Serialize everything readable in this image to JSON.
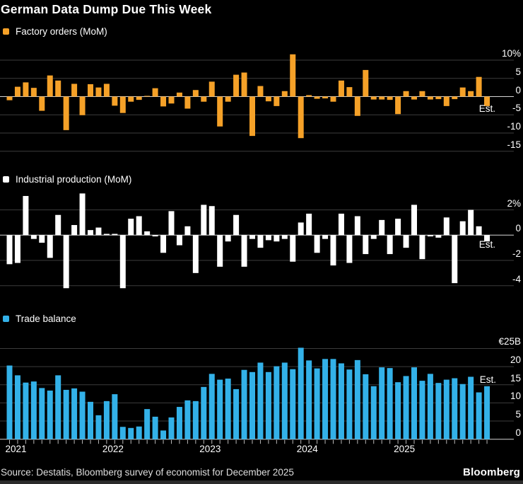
{
  "title": "German Data Dump Due This Week",
  "source": "Source: Destatis, Bloomberg survey of economist for December 2025",
  "brand": "Bloomberg",
  "colors": {
    "background": "#000000",
    "factory_orders": "#F5A128",
    "industrial_production": "#FFFFFF",
    "trade_balance": "#33B1E8",
    "gridline": "#3C3C3C",
    "zero_line": "#D6D6D6",
    "axis_tick": "#B8B8B8",
    "axis_text": "#FFFFFF",
    "source_text": "#DEDEDE"
  },
  "x_axis": {
    "years": [
      "2021",
      "2022",
      "2023",
      "2024",
      "2025"
    ],
    "months_per_year": 12,
    "start": "2021-01",
    "end": "2025-12",
    "last_point_note": "Est."
  },
  "chart_data": [
    {
      "type": "bar",
      "title": "Factory orders (MoM)",
      "unit": "%",
      "color": "#F5A128",
      "est_label": "Est.",
      "est_month": "2025-12",
      "ylim": [
        -15,
        10
      ],
      "grid": true,
      "legend_position": "top-left",
      "yticks": [
        "10%",
        "5",
        "0",
        "-5",
        "-10",
        "-15"
      ],
      "ytick_values": [
        10,
        5,
        0,
        -5,
        -10,
        -15
      ],
      "x_start": "2021-01",
      "values": [
        -1.0,
        2.7,
        3.9,
        2.4,
        -3.9,
        5.8,
        4.4,
        -9.2,
        3.5,
        -5.1,
        3.4,
        2.5,
        3.5,
        -2.5,
        -4.5,
        -1.4,
        -0.9,
        0.2,
        2.3,
        -2.7,
        -1.9,
        1.1,
        -3.3,
        1.8,
        -1.4,
        4.1,
        -8.2,
        -1.4,
        6.0,
        6.6,
        -10.8,
        2.9,
        -1.3,
        -2.6,
        1.5,
        11.6,
        -11.4,
        0.4,
        -0.6,
        -0.5,
        -1.4,
        4.4,
        2.6,
        -5.3,
        7.3,
        -0.8,
        -0.8,
        -0.9,
        -4.8,
        1.5,
        -0.8,
        1.5,
        -0.8,
        -0.7,
        -2.6,
        -0.7,
        2.5,
        1.5,
        5.4,
        -2.6
      ]
    },
    {
      "type": "bar",
      "title": "Industrial production (MoM)",
      "unit": "%",
      "color": "#FFFFFF",
      "est_label": "Est.",
      "est_month": "2025-12",
      "ylim": [
        -4,
        2
      ],
      "grid": true,
      "legend_position": "top-left",
      "yticks": [
        "2%",
        "0",
        "-2",
        "-4"
      ],
      "ytick_values": [
        2,
        0,
        -2,
        -4
      ],
      "x_start": "2021-01",
      "values": [
        -2.3,
        -2.2,
        3.1,
        -0.3,
        -0.6,
        -1.8,
        1.6,
        -4.2,
        0.8,
        3.3,
        0.4,
        0.6,
        0.1,
        0.1,
        -4.2,
        1.3,
        1.5,
        0.3,
        -0.1,
        -1.4,
        1.9,
        -0.8,
        0.7,
        -3.0,
        2.4,
        2.3,
        -2.5,
        -0.5,
        1.6,
        -2.5,
        -0.3,
        -1.0,
        -0.4,
        -0.5,
        -0.3,
        -2.1,
        1.0,
        1.7,
        -1.4,
        -0.3,
        -2.4,
        1.7,
        -2.2,
        1.5,
        -1.5,
        -0.3,
        1.2,
        -1.5,
        1.3,
        -1.0,
        2.4,
        -1.9,
        -0.1,
        -0.2,
        1.4,
        -3.8,
        1.1,
        2.0,
        0.7,
        -0.5
      ]
    },
    {
      "type": "bar",
      "title": "Trade balance",
      "unit": "EUR billions",
      "color": "#33B1E8",
      "est_label": "Est.",
      "est_month": "2025-12",
      "ylim": [
        0,
        25
      ],
      "grid": true,
      "legend_position": "top-left",
      "yticks": [
        "€25B",
        "20",
        "15",
        "10",
        "5",
        "0"
      ],
      "ytick_values": [
        25,
        20,
        15,
        10,
        5,
        0
      ],
      "x_start": "2021-01",
      "values": [
        20.3,
        17.6,
        15.6,
        15.9,
        14.1,
        13.4,
        17.6,
        13.6,
        14.0,
        13.1,
        10.3,
        6.6,
        10.5,
        12.4,
        3.4,
        3.1,
        3.5,
        8.3,
        6.2,
        2.4,
        6.0,
        8.9,
        10.7,
        10.5,
        14.4,
        18.0,
        16.4,
        16.7,
        13.8,
        19.1,
        18.5,
        21.1,
        18.5,
        20.1,
        21.1,
        19.3,
        25.2,
        21.7,
        19.5,
        22.1,
        22.1,
        20.9,
        19.2,
        21.8,
        17.9,
        14.6,
        19.8,
        19.6,
        15.7,
        17.4,
        19.8,
        16.1,
        18.0,
        15.5,
        16.4,
        16.8,
        15.2,
        17.2,
        12.9,
        14.6
      ]
    }
  ]
}
